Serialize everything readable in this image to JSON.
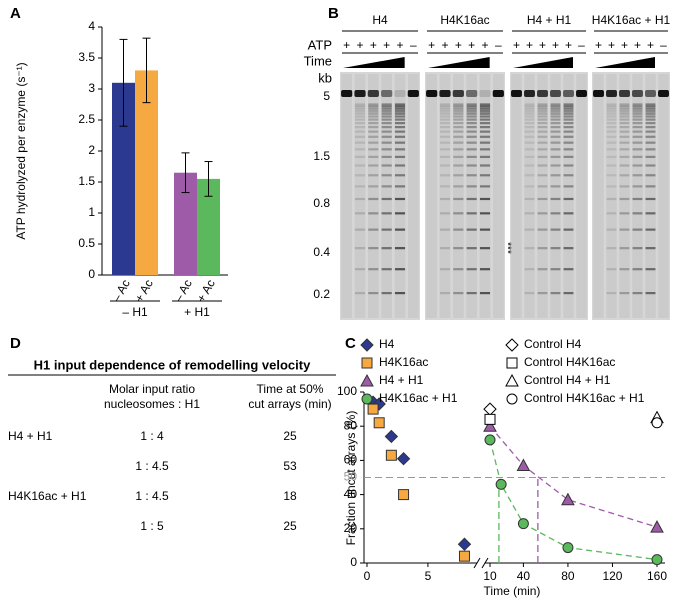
{
  "panel_labels": [
    "A",
    "B",
    "C",
    "D"
  ],
  "chart_data": [
    {
      "type": "bar",
      "ylabel": "ATP hydrolyzed per enzyme (s⁻¹)",
      "categories": [
        "– Ac",
        "+ Ac",
        "– Ac",
        "+ Ac"
      ],
      "groups": [
        "– H1",
        "+ H1"
      ],
      "values": [
        3.1,
        3.3,
        1.65,
        1.55
      ],
      "errors": [
        0.7,
        0.52,
        0.32,
        0.28
      ],
      "colors": [
        "#2b3990",
        "#f7a941",
        "#9e5ba8",
        "#5cb85c"
      ],
      "ylim": [
        0,
        4
      ],
      "yticks": [
        0,
        0.5,
        1,
        1.5,
        2,
        2.5,
        3,
        3.5,
        4
      ]
    },
    {
      "type": "scatter",
      "xlabel": "Time (min)",
      "ylabel": "Fraction uncut arrays (%)",
      "xlim": [
        [
          0,
          8.7
        ],
        [
          10,
          160
        ]
      ],
      "xticks": [
        0,
        5,
        10,
        40,
        80,
        120,
        160
      ],
      "ylim": [
        0,
        100
      ],
      "yticks": [
        0,
        20,
        40,
        60,
        80,
        100
      ],
      "series": [
        {
          "name": "H4",
          "color": "#2b3990",
          "marker": "diamond",
          "filled": true,
          "x": [
            0.5,
            1,
            2,
            3,
            8
          ],
          "values": [
            94,
            93,
            74,
            61,
            11
          ]
        },
        {
          "name": "H4K16ac",
          "color": "#f7a941",
          "marker": "square",
          "filled": true,
          "x": [
            0.5,
            1,
            2,
            3,
            8
          ],
          "values": [
            90,
            82,
            63,
            40,
            4
          ]
        },
        {
          "name": "H4 + H1",
          "color": "#9e5ba8",
          "marker": "triangle",
          "filled": true,
          "line": "dashed",
          "x": [
            10,
            40,
            80,
            160
          ],
          "values": [
            80,
            57,
            37,
            21
          ]
        },
        {
          "name": "H4K16ac + H1",
          "color": "#5cb85c",
          "marker": "circle",
          "filled": true,
          "line": "dashed",
          "x": [
            10,
            20,
            40,
            80,
            160
          ],
          "values": [
            72,
            46,
            23,
            9,
            2
          ]
        },
        {
          "name": "Control H4",
          "color": "#000000",
          "marker": "diamond",
          "filled": false,
          "x": [
            10
          ],
          "values": [
            90
          ]
        },
        {
          "name": "Control H4K16ac",
          "color": "#000000",
          "marker": "square",
          "filled": false,
          "x": [
            10
          ],
          "values": [
            84
          ]
        },
        {
          "name": "Control H4 + H1",
          "color": "#000000",
          "marker": "triangle",
          "filled": false,
          "x": [
            160
          ],
          "values": [
            85
          ]
        },
        {
          "name": "Control H4K16ac + H1",
          "color": "#000000",
          "marker": "circle",
          "filled": false,
          "x": [
            160
          ],
          "values": [
            82
          ]
        }
      ],
      "reference_lines": [
        {
          "axis": "y",
          "value": 50,
          "color": "#999999"
        },
        {
          "axis": "x",
          "value": 18,
          "color": "#5cb85c"
        },
        {
          "axis": "x",
          "value": 53,
          "color": "#9e5ba8"
        }
      ]
    }
  ],
  "gel": {
    "lanes": [
      "H4",
      "H4K16ac",
      "H4 + H1",
      "H4K16ac + H1"
    ],
    "atp_label": "ATP",
    "atp": [
      "+",
      "+",
      "+",
      "+",
      "+",
      "–"
    ],
    "time_label": "Time",
    "size_unit": "kb",
    "size_markers": [
      5,
      1.5,
      0.8,
      0.4,
      0.2
    ],
    "annotation": "***"
  },
  "table": {
    "title": "H1 input dependence of remodelling velocity",
    "header": [
      null,
      [
        "Molar input ratio",
        "nucleosomes : H1"
      ],
      [
        "Time at 50%",
        "cut arrays (min)"
      ]
    ],
    "rows": [
      [
        "H4 + H1",
        "1 : 4",
        25
      ],
      [
        null,
        "1 : 4.5",
        53
      ],
      [
        "H4K16ac + H1",
        "1 : 4.5",
        18
      ],
      [
        null,
        "1 : 5",
        25
      ]
    ]
  }
}
